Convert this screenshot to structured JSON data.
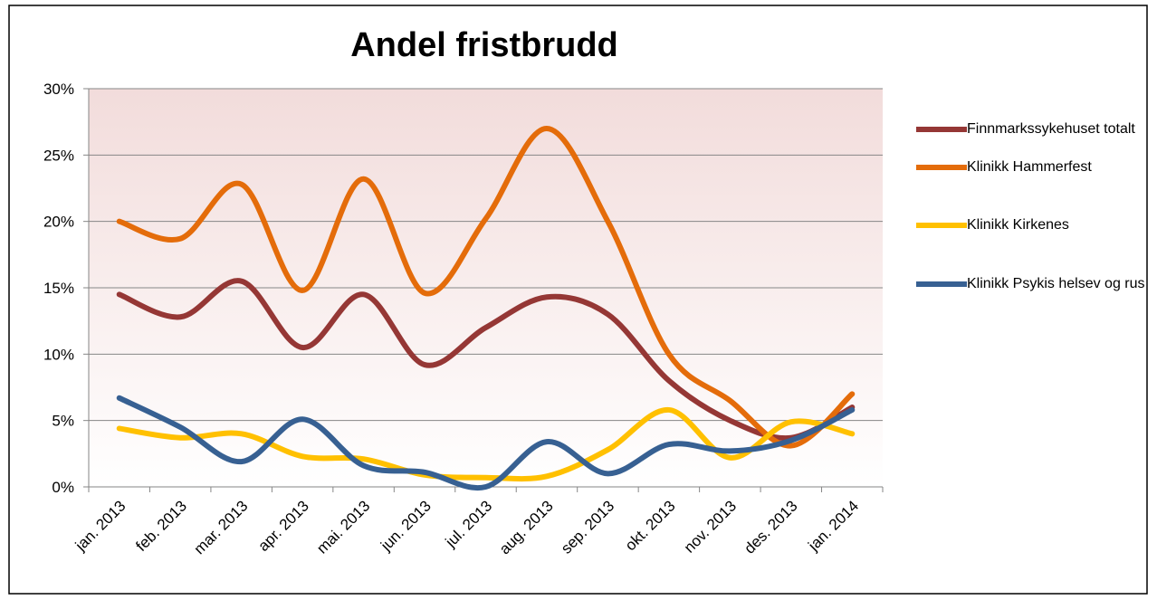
{
  "chart_data": {
    "type": "line",
    "title": "Andel fristbrudd",
    "categories": [
      "jan. 2013",
      "feb. 2013",
      "mar. 2013",
      "apr. 2013",
      "mai. 2013",
      "jun. 2013",
      "jul. 2013",
      "aug. 2013",
      "sep. 2013",
      "okt. 2013",
      "nov. 2013",
      "des. 2013",
      "jan. 2014"
    ],
    "series": [
      {
        "name": "Finnmarkssykehuset totalt",
        "color": "#953735",
        "values": [
          14.5,
          12.8,
          15.5,
          10.5,
          14.5,
          9.2,
          12,
          14.3,
          13,
          8,
          5,
          3.7,
          6
        ]
      },
      {
        "name": "Klinikk Hammerfest",
        "color": "#e46c0a",
        "values": [
          20,
          18.7,
          22.8,
          14.8,
          23.2,
          14.6,
          20.2,
          27,
          20,
          10,
          6.5,
          3.1,
          7
        ]
      },
      {
        "name": "Klinikk Kirkenes",
        "color": "#ffc000",
        "values": [
          4.4,
          3.7,
          4,
          2.3,
          2.1,
          0.9,
          0.7,
          0.8,
          2.8,
          5.8,
          2.2,
          4.9,
          4
        ]
      },
      {
        "name": "Klinikk Psykis helsev og rus",
        "color": "#376092",
        "values": [
          6.7,
          4.5,
          1.9,
          5.1,
          1.6,
          1.1,
          0,
          3.4,
          1,
          3.2,
          2.7,
          3.5,
          5.8
        ]
      }
    ],
    "ylim": [
      0,
      30
    ],
    "yticks": [
      {
        "value": 0,
        "label": "0%"
      },
      {
        "value": 5,
        "label": "5%"
      },
      {
        "value": 10,
        "label": "10%"
      },
      {
        "value": 15,
        "label": "15%"
      },
      {
        "value": 20,
        "label": "20%"
      },
      {
        "value": 25,
        "label": "25%"
      },
      {
        "value": 30,
        "label": "30%"
      }
    ],
    "grid": true,
    "legend": "right"
  }
}
